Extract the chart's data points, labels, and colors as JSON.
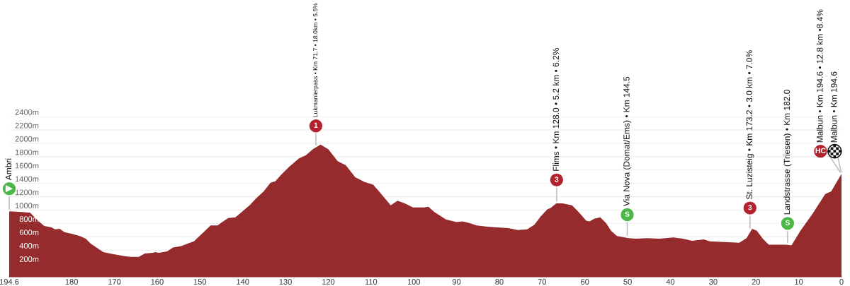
{
  "chart_data": {
    "type": "area",
    "xlim": [
      194.6,
      0
    ],
    "xticks": [
      194.6,
      180,
      170,
      160,
      150,
      140,
      130,
      120,
      110,
      100,
      90,
      80,
      70,
      60,
      50,
      40,
      30,
      20,
      10,
      0
    ],
    "ylim": [
      0,
      2400
    ],
    "yticks": [
      {
        "value": 200,
        "label": "200m"
      },
      {
        "value": 400,
        "label": "400m"
      },
      {
        "value": 600,
        "label": "600m"
      },
      {
        "value": 800,
        "label": "800m"
      },
      {
        "value": 1000,
        "label": "1000m"
      },
      {
        "value": 1200,
        "label": "1200m"
      },
      {
        "value": 1400,
        "label": "1400m"
      },
      {
        "value": 1600,
        "label": "1600m"
      },
      {
        "value": 1800,
        "label": "1800m"
      },
      {
        "value": 2000,
        "label": "2000m"
      },
      {
        "value": 2200,
        "label": "2200m"
      },
      {
        "value": 2400,
        "label": "2400m"
      }
    ],
    "grid": "y",
    "series": [
      {
        "color": "#952b2d",
        "x": [
          194.6,
          191.6,
          189.7,
          188.8,
          187.5,
          186.4,
          184.7,
          183.9,
          182.8,
          181.7,
          179.7,
          178.1,
          176.7,
          175.6,
          174.2,
          172.6,
          170.4,
          167.6,
          166.2,
          164.3,
          162.9,
          161.0,
          160.5,
          159.6,
          157.7,
          156.3,
          154.4,
          152.8,
          151.4,
          149.8,
          147.5,
          145.9,
          144.8,
          143.4,
          141.7,
          138.4,
          136.8,
          135.1,
          133.5,
          132.4,
          130.7,
          129.1,
          126.9,
          125.2,
          123.6,
          121.8,
          120.0,
          117.8,
          115.9,
          113.7,
          111.5,
          109.5,
          107.6,
          105.4,
          103.8,
          102.1,
          100.2,
          97.6,
          96.6,
          95.2,
          92.5,
          90.0,
          88.6,
          87.2,
          85.3,
          82.8,
          80.6,
          77.9,
          75.7,
          73.5,
          71.8,
          70.4,
          68.8,
          68.0,
          66.7,
          65.2,
          63.0,
          61.3,
          59.7,
          58.9,
          57.8,
          56.4,
          55.0,
          53.9,
          52.5,
          49.8,
          48.1,
          45.4,
          42.6,
          39.3,
          37.1,
          34.9,
          32.2,
          30.8,
          27.2,
          23.9,
          22.2,
          20.9,
          19.8,
          18.4,
          17.0,
          14.5,
          12.9,
          11.7,
          9.6,
          6.8,
          3.8,
          2.4,
          1.3,
          0
        ],
        "values": [
          980,
          970,
          960,
          900,
          820,
          760,
          740,
          710,
          720,
          670,
          640,
          610,
          570,
          500,
          440,
          370,
          340,
          310,
          300,
          300,
          350,
          360,
          370,
          360,
          380,
          440,
          460,
          500,
          530,
          630,
          770,
          770,
          820,
          880,
          890,
          1070,
          1180,
          1280,
          1410,
          1430,
          1550,
          1650,
          1770,
          1820,
          1910,
          1980,
          1910,
          1730,
          1670,
          1490,
          1420,
          1380,
          1240,
          1070,
          1140,
          1100,
          1040,
          1040,
          1050,
          970,
          860,
          820,
          830,
          810,
          770,
          750,
          740,
          730,
          700,
          710,
          780,
          900,
          1010,
          1030,
          1100,
          1100,
          1070,
          960,
          840,
          830,
          870,
          890,
          800,
          690,
          610,
          580,
          570,
          580,
          570,
          590,
          570,
          540,
          560,
          530,
          520,
          510,
          580,
          720,
          690,
          570,
          480,
          480,
          480,
          470,
          690,
          940,
          1240,
          1280,
          1400,
          1540
        ]
      },
      {
        "type": "scatter",
        "marker": "circle",
        "x": [
          194.6,
          122.9,
          66.6,
          50.1,
          21.4,
          12.6,
          4.9,
          1.6
        ],
        "values": [
          1320,
          2260,
          1450,
          930,
          1030,
          800,
          1880,
          1880
        ],
        "colors": [
          "#4cb848",
          "#b3232f",
          "#b3232f",
          "#4cb848",
          "#b3232f",
          "#4cb848",
          "#b3232f",
          "#ffffff"
        ]
      }
    ],
    "annotations": [
      {
        "text": "Ambri",
        "x": 194.6,
        "y": 980
      },
      {
        "text": "Lukmanierpass • Km 71.7 • 18.0km • 5.5%",
        "x": 122.9,
        "y": 1940
      },
      {
        "text": "Flims • Km 128.0 • 5.2 km • 6.2%",
        "x": 66.6,
        "y": 1100
      },
      {
        "text": "Via Nova (Domat/Ems) • Km 144.5",
        "x": 50.1,
        "y": 590
      },
      {
        "text": "St. Luzisteig • Km 173.2 • 3.0 km • 7.0%",
        "x": 21.4,
        "y": 700
      },
      {
        "text": "Landstrasse (Triesen) • Km 182.0",
        "x": 12.6,
        "y": 480
      },
      {
        "text": "Malbun • Km 194.6 • 12.8 km •8.4%",
        "x": 0,
        "y": 1540
      },
      {
        "text": "Malbun • Km 194.6",
        "x": 0,
        "y": 1540
      },
      {
        "text": "1",
        "x": 122.9,
        "y": 2260
      },
      {
        "text": "3",
        "x": 66.6,
        "y": 1450
      },
      {
        "text": "S",
        "x": 50.1,
        "y": 930
      },
      {
        "text": "3",
        "x": 21.4,
        "y": 1030
      },
      {
        "text": "S",
        "x": 12.6,
        "y": 800
      },
      {
        "text": "HC",
        "x": 4.9,
        "y": 1880
      }
    ]
  }
}
